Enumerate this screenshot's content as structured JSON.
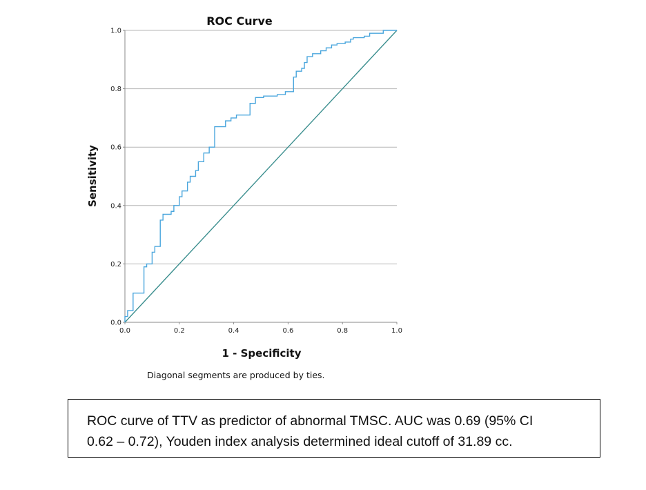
{
  "chart_data": {
    "type": "line",
    "title": "ROC Curve",
    "xlabel": "1 - Specificity",
    "ylabel": "Sensitivity",
    "xlim": [
      0.0,
      1.0
    ],
    "ylim": [
      0.0,
      1.0
    ],
    "x_ticks": [
      "0.0",
      "0.2",
      "0.4",
      "0.6",
      "0.8",
      "1.0"
    ],
    "y_ticks": [
      "0.0",
      "0.2",
      "0.4",
      "0.6",
      "0.8",
      "1.0"
    ],
    "grid": "horizontal",
    "series": [
      {
        "color": "#4aa6dd",
        "points": [
          [
            0.0,
            0.0
          ],
          [
            0.0,
            0.02
          ],
          [
            0.01,
            0.02
          ],
          [
            0.01,
            0.04
          ],
          [
            0.03,
            0.04
          ],
          [
            0.03,
            0.1
          ],
          [
            0.07,
            0.1
          ],
          [
            0.07,
            0.19
          ],
          [
            0.08,
            0.19
          ],
          [
            0.08,
            0.2
          ],
          [
            0.1,
            0.2
          ],
          [
            0.1,
            0.24
          ],
          [
            0.11,
            0.24
          ],
          [
            0.11,
            0.26
          ],
          [
            0.13,
            0.26
          ],
          [
            0.13,
            0.35
          ],
          [
            0.14,
            0.35
          ],
          [
            0.14,
            0.37
          ],
          [
            0.17,
            0.37
          ],
          [
            0.17,
            0.38
          ],
          [
            0.18,
            0.38
          ],
          [
            0.18,
            0.4
          ],
          [
            0.2,
            0.4
          ],
          [
            0.2,
            0.43
          ],
          [
            0.21,
            0.43
          ],
          [
            0.21,
            0.45
          ],
          [
            0.23,
            0.45
          ],
          [
            0.23,
            0.48
          ],
          [
            0.24,
            0.48
          ],
          [
            0.24,
            0.5
          ],
          [
            0.26,
            0.5
          ],
          [
            0.26,
            0.52
          ],
          [
            0.27,
            0.52
          ],
          [
            0.27,
            0.55
          ],
          [
            0.29,
            0.55
          ],
          [
            0.29,
            0.58
          ],
          [
            0.31,
            0.58
          ],
          [
            0.31,
            0.6
          ],
          [
            0.33,
            0.6
          ],
          [
            0.33,
            0.67
          ],
          [
            0.37,
            0.67
          ],
          [
            0.37,
            0.69
          ],
          [
            0.39,
            0.69
          ],
          [
            0.39,
            0.7
          ],
          [
            0.41,
            0.7
          ],
          [
            0.41,
            0.71
          ],
          [
            0.46,
            0.71
          ],
          [
            0.46,
            0.75
          ],
          [
            0.48,
            0.75
          ],
          [
            0.48,
            0.77
          ],
          [
            0.51,
            0.77
          ],
          [
            0.51,
            0.775
          ],
          [
            0.56,
            0.775
          ],
          [
            0.56,
            0.78
          ],
          [
            0.59,
            0.78
          ],
          [
            0.59,
            0.79
          ],
          [
            0.62,
            0.79
          ],
          [
            0.62,
            0.84
          ],
          [
            0.63,
            0.84
          ],
          [
            0.63,
            0.86
          ],
          [
            0.65,
            0.86
          ],
          [
            0.65,
            0.87
          ],
          [
            0.66,
            0.87
          ],
          [
            0.66,
            0.89
          ],
          [
            0.67,
            0.89
          ],
          [
            0.67,
            0.91
          ],
          [
            0.69,
            0.91
          ],
          [
            0.69,
            0.92
          ],
          [
            0.72,
            0.92
          ],
          [
            0.72,
            0.93
          ],
          [
            0.74,
            0.93
          ],
          [
            0.74,
            0.94
          ],
          [
            0.76,
            0.94
          ],
          [
            0.76,
            0.95
          ],
          [
            0.78,
            0.95
          ],
          [
            0.78,
            0.955
          ],
          [
            0.81,
            0.955
          ],
          [
            0.81,
            0.96
          ],
          [
            0.83,
            0.96
          ],
          [
            0.83,
            0.97
          ],
          [
            0.84,
            0.97
          ],
          [
            0.84,
            0.975
          ],
          [
            0.88,
            0.975
          ],
          [
            0.88,
            0.98
          ],
          [
            0.9,
            0.98
          ],
          [
            0.9,
            0.99
          ],
          [
            0.95,
            0.99
          ],
          [
            0.95,
            1.0
          ],
          [
            1.0,
            1.0
          ]
        ]
      },
      {
        "color": "#3c8f8f",
        "points": [
          [
            0.0,
            0.0
          ],
          [
            1.0,
            1.0
          ]
        ]
      }
    ]
  },
  "note": "Diagonal segments are produced by ties.",
  "caption": {
    "line1": "ROC curve of TTV as predictor of abnormal TMSC. AUC was 0.69 (95% CI",
    "line2": "0.62 – 0.72), Youden index analysis determined ideal cutoff of 31.89 cc."
  }
}
